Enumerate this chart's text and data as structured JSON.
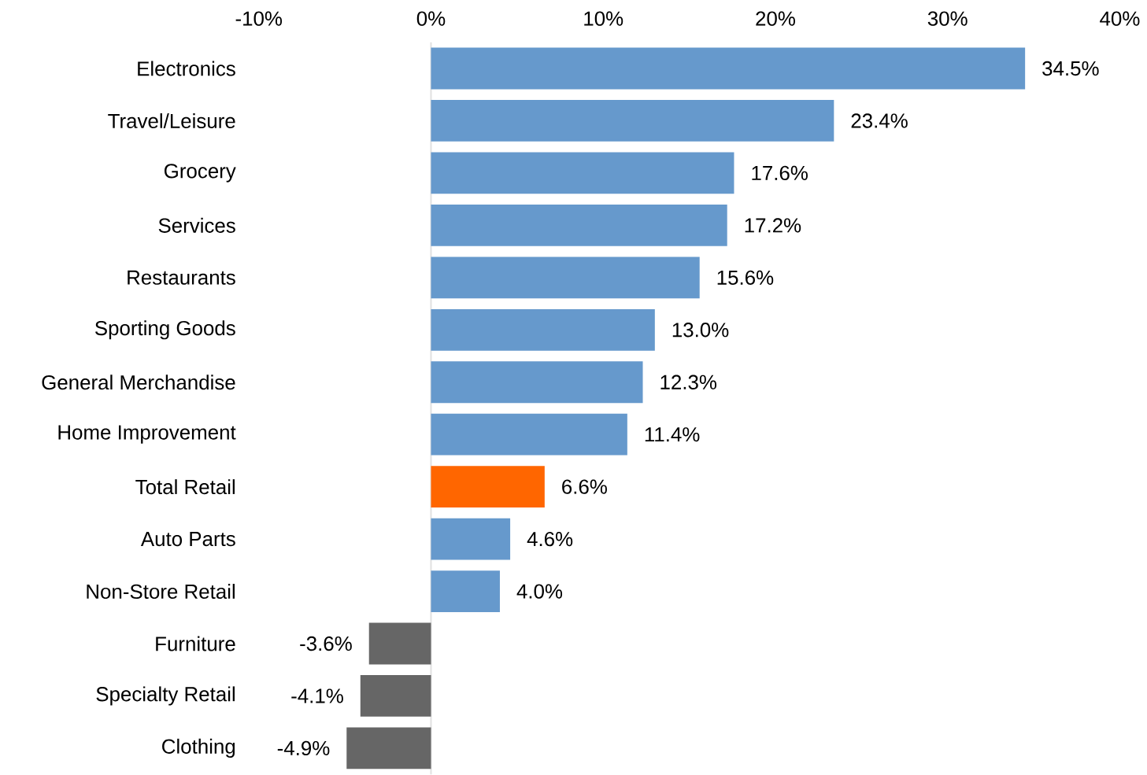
{
  "chart_data": {
    "type": "bar",
    "orientation": "horizontal",
    "categories": [
      "Electronics",
      "Travel/Leisure",
      "Grocery",
      "Services",
      "Restaurants",
      "Sporting Goods",
      "General Merchandise",
      "Home Improvement",
      "Total Retail",
      "Auto Parts",
      "Non-Store Retail",
      "Furniture",
      "Specialty Retail",
      "Clothing"
    ],
    "values": [
      34.5,
      23.4,
      17.6,
      17.2,
      15.6,
      13.0,
      12.3,
      11.4,
      6.6,
      4.6,
      4.0,
      -3.6,
      -4.1,
      -4.9
    ],
    "value_labels": [
      "34.5%",
      "23.4%",
      "17.6%",
      "17.2%",
      "15.6%",
      "13.0%",
      "12.3%",
      "11.4%",
      "6.6%",
      "4.6%",
      "4.0%",
      "-3.6%",
      "-4.1%",
      "-4.9%"
    ],
    "colors": [
      "#6699cc",
      "#6699cc",
      "#6699cc",
      "#6699cc",
      "#6699cc",
      "#6699cc",
      "#6699cc",
      "#6699cc",
      "#ff6600",
      "#6699cc",
      "#6699cc",
      "#666666",
      "#666666",
      "#666666"
    ],
    "xlim": [
      -10,
      40
    ],
    "xticks": [
      {
        "value": -10,
        "label": "-10%"
      },
      {
        "value": 0,
        "label": "0%"
      },
      {
        "value": 10,
        "label": "10%"
      },
      {
        "value": 20,
        "label": "20%"
      },
      {
        "value": 30,
        "label": "30%"
      },
      {
        "value": 40,
        "label": "40%"
      }
    ]
  }
}
